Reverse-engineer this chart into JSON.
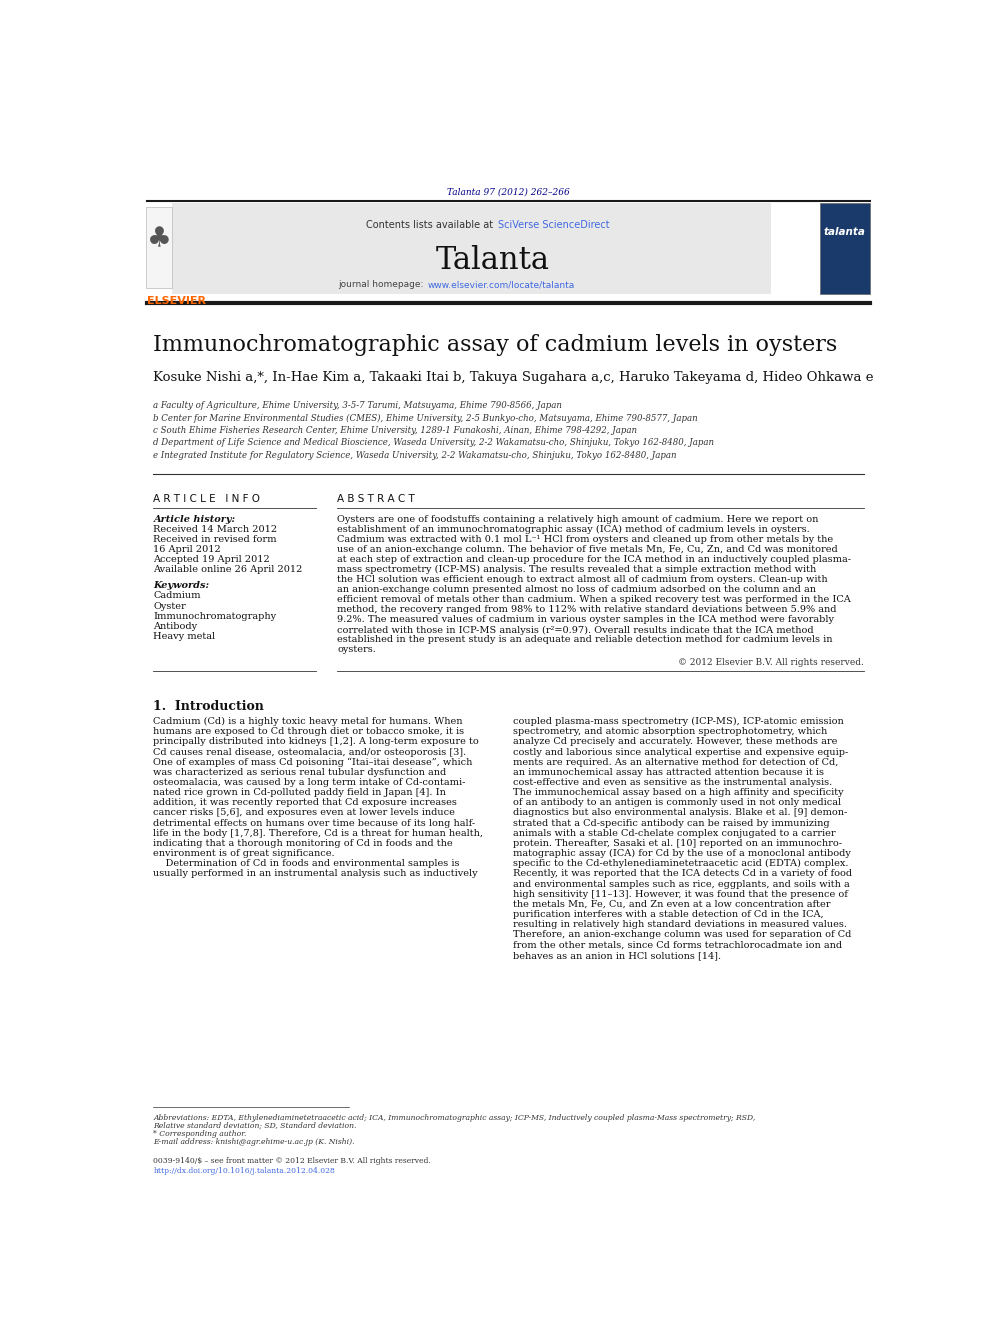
{
  "page_width": 9.92,
  "page_height": 13.23,
  "bg_color": "#ffffff",
  "journal_ref": "Talanta 97 (2012) 262–266",
  "journal_ref_color": "#00008B",
  "header_bg": "#e8e8e8",
  "contents_text": "Contents lists available at ",
  "sciverse_text": "SciVerse ScienceDirect",
  "sciverse_color": "#4169E1",
  "journal_name": "Talanta",
  "journal_homepage_label": "journal homepage: ",
  "journal_url": "www.elsevier.com/locate/talanta",
  "journal_url_color": "#4169E1",
  "header_bar_color": "#1a1a1a",
  "title": "Immunochromatographic assay of cadmium levels in oysters",
  "authors": "Kosuke Nishi a,*, In-Hae Kim a, Takaaki Itai b, Takuya Sugahara a,c, Haruko Takeyama d, Hideo Ohkawa e",
  "affiliations": [
    "a Faculty of Agriculture, Ehime University, 3-5-7 Tarumi, Matsuyama, Ehime 790-8566, Japan",
    "b Center for Marine Environmental Studies (CMES), Ehime University, 2-5 Bunkyo-cho, Matsuyama, Ehime 790-8577, Japan",
    "c South Ehime Fisheries Research Center, Ehime University, 1289-1 Funakoshi, Ainan, Ehime 798-4292, Japan",
    "d Department of Life Science and Medical Bioscience, Waseda University, 2-2 Wakamatsu-cho, Shinjuku, Tokyo 162-8480, Japan",
    "e Integrated Institute for Regulatory Science, Waseda University, 2-2 Wakamatsu-cho, Shinjuku, Tokyo 162-8480, Japan"
  ],
  "article_info_title": "A R T I C L E   I N F O",
  "abstract_title": "A B S T R A C T",
  "article_history_label": "Article history:",
  "received_1": "Received 14 March 2012",
  "received_2": "Received in revised form",
  "received_2b": "16 April 2012",
  "accepted": "Accepted 19 April 2012",
  "available": "Available online 26 April 2012",
  "keywords_label": "Keywords:",
  "keywords": [
    "Cadmium",
    "Oyster",
    "Immunochromatography",
    "Antibody",
    "Heavy metal"
  ],
  "abstract_lines": [
    "Oysters are one of foodstuffs containing a relatively high amount of cadmium. Here we report on",
    "establishment of an immunochromatographic assay (ICA) method of cadmium levels in oysters.",
    "Cadmium was extracted with 0.1 mol L⁻¹ HCl from oysters and cleaned up from other metals by the",
    "use of an anion-exchange column. The behavior of five metals Mn, Fe, Cu, Zn, and Cd was monitored",
    "at each step of extraction and clean-up procedure for the ICA method in an inductively coupled plasma-",
    "mass spectrometry (ICP-MS) analysis. The results revealed that a simple extraction method with",
    "the HCl solution was efficient enough to extract almost all of cadmium from oysters. Clean-up with",
    "an anion-exchange column presented almost no loss of cadmium adsorbed on the column and an",
    "efficient removal of metals other than cadmium. When a spiked recovery test was performed in the ICA",
    "method, the recovery ranged from 98% to 112% with relative standard deviations between 5.9% and",
    "9.2%. The measured values of cadmium in various oyster samples in the ICA method were favorably",
    "correlated with those in ICP-MS analysis (r²=0.97). Overall results indicate that the ICA method",
    "established in the present study is an adequate and reliable detection method for cadmium levels in",
    "oysters."
  ],
  "copyright": "© 2012 Elsevier B.V. All rights reserved.",
  "intro_title": "1.  Introduction",
  "intro_col1_lines": [
    "Cadmium (Cd) is a highly toxic heavy metal for humans. When",
    "humans are exposed to Cd through diet or tobacco smoke, it is",
    "principally distributed into kidneys [1,2]. A long-term exposure to",
    "Cd causes renal disease, osteomalacia, and/or osteoporosis [3].",
    "One of examples of mass Cd poisoning “Itai–itai desease”, which",
    "was characterized as serious renal tubular dysfunction and",
    "osteomalacia, was caused by a long term intake of Cd-contami-",
    "nated rice grown in Cd-polluted paddy field in Japan [4]. In",
    "addition, it was recently reported that Cd exposure increases",
    "cancer risks [5,6], and exposures even at lower levels induce",
    "detrimental effects on humans over time because of its long half-",
    "life in the body [1,7,8]. Therefore, Cd is a threat for human health,",
    "indicating that a thorough monitoring of Cd in foods and the",
    "environment is of great significance.",
    "    Determination of Cd in foods and environmental samples is",
    "usually performed in an instrumental analysis such as inductively"
  ],
  "intro_col2_lines": [
    "coupled plasma-mass spectrometry (ICP-MS), ICP-atomic emission",
    "spectrometry, and atomic absorption spectrophotometry, which",
    "analyze Cd precisely and accurately. However, these methods are",
    "costly and laborious since analytical expertise and expensive equip-",
    "ments are required. As an alternative method for detection of Cd,",
    "an immunochemical assay has attracted attention because it is",
    "cost-effective and even as sensitive as the instrumental analysis.",
    "The immunochemical assay based on a high affinity and specificity",
    "of an antibody to an antigen is commonly used in not only medical",
    "diagnostics but also environmental analysis. Blake et al. [9] demon-",
    "strated that a Cd-specific antibody can be raised by immunizing",
    "animals with a stable Cd-chelate complex conjugated to a carrier",
    "protein. Thereafter, Sasaki et al. [10] reported on an immunochro-",
    "matographic assay (ICA) for Cd by the use of a monoclonal antibody",
    "specific to the Cd-ethylenediaminetetraacetic acid (EDTA) complex.",
    "Recently, it was reported that the ICA detects Cd in a variety of food",
    "and environmental samples such as rice, eggplants, and soils with a",
    "high sensitivity [11–13]. However, it was found that the presence of",
    "the metals Mn, Fe, Cu, and Zn even at a low concentration after",
    "purification interferes with a stable detection of Cd in the ICA,",
    "resulting in relatively high standard deviations in measured values.",
    "Therefore, an anion-exchange column was used for separation of Cd",
    "from the other metals, since Cd forms tetrachlorocadmate ion and",
    "behaves as an anion in HCl solutions [14]."
  ],
  "footnote_abbrev": "Abbreviations: EDTA, Ethylenediaminetetraacetic acid; ICA, Immunochromatographic assay; ICP-MS, Inductively coupled plasma-Mass spectrometry; RSD,",
  "footnote_abbrev2": "Relative standard deviation; SD, Standard deviation.",
  "footnote_corresponding": "* Corresponding author.",
  "footnote_email": "E-mail address: knishi@agr.ehime-u.ac.jp (K. Nishi).",
  "footnote_issn": "0039-9140/$ – see front matter © 2012 Elsevier B.V. All rights reserved.",
  "footnote_doi": "http://dx.doi.org/10.1016/j.talanta.2012.04.028",
  "orange_color": "#FF6600",
  "blue_link": "#4169E1"
}
